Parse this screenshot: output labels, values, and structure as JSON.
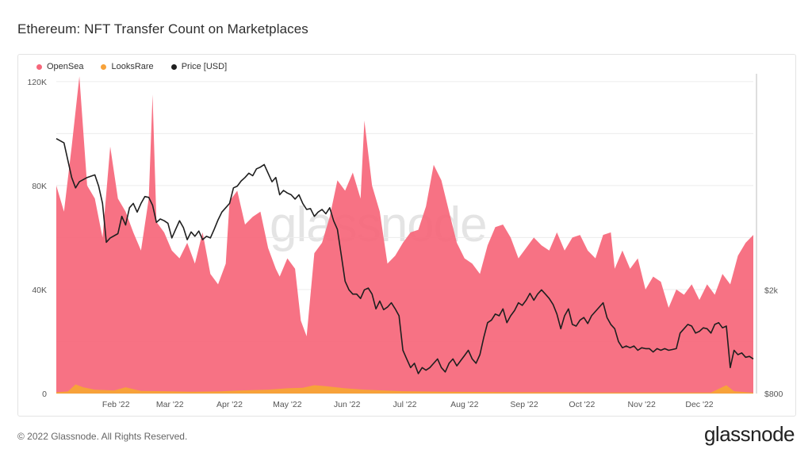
{
  "header": {
    "title": "Ethereum: NFT Transfer Count on Marketplaces"
  },
  "footer": {
    "copyright": "© 2022 Glassnode. All Rights Reserved.",
    "brand": "glassnode",
    "watermark": "glassnode"
  },
  "colors": {
    "opensea": "#f6667a",
    "looksrare": "#f7a23a",
    "price": "#1f1f1f",
    "grid": "#ececec"
  },
  "chart_data": {
    "type": "area",
    "title": "Ethereum: NFT Transfer Count on Marketplaces",
    "x": {
      "ticks": [
        "Feb '22",
        "Mar '22",
        "Apr '22",
        "May '22",
        "Jun '22",
        "Jul '22",
        "Aug '22",
        "Sep '22",
        "Oct '22",
        "Nov '22",
        "Dec '22"
      ],
      "range_days": [
        0,
        362
      ]
    },
    "y_left": {
      "ticks": [
        "0",
        "40K",
        "80K",
        "120K"
      ],
      "tick_values": [
        0,
        40000,
        80000,
        120000
      ],
      "range": [
        0,
        123000
      ]
    },
    "y_right": {
      "ticks": [
        "$800",
        "$2k"
      ],
      "tick_values": [
        800,
        2000
      ],
      "range": [
        800,
        4500
      ]
    },
    "grid": true,
    "legend_placement": "top-left",
    "series": [
      {
        "name": "OpenSea",
        "values": [
          [
            0,
            80000
          ],
          [
            4,
            70000
          ],
          [
            8,
            95000
          ],
          [
            12,
            122000
          ],
          [
            16,
            80000
          ],
          [
            20,
            75000
          ],
          [
            24,
            60000
          ],
          [
            28,
            95000
          ],
          [
            32,
            75000
          ],
          [
            36,
            70000
          ],
          [
            40,
            62000
          ],
          [
            44,
            55000
          ],
          [
            48,
            75000
          ],
          [
            50,
            115000
          ],
          [
            52,
            66000
          ],
          [
            56,
            62000
          ],
          [
            60,
            55000
          ],
          [
            64,
            52000
          ],
          [
            68,
            58000
          ],
          [
            72,
            50000
          ],
          [
            76,
            62000
          ],
          [
            80,
            46000
          ],
          [
            84,
            42000
          ],
          [
            88,
            50000
          ],
          [
            90,
            74000
          ],
          [
            94,
            78000
          ],
          [
            98,
            65000
          ],
          [
            102,
            68000
          ],
          [
            106,
            70000
          ],
          [
            110,
            56000
          ],
          [
            114,
            48000
          ],
          [
            116,
            45000
          ],
          [
            120,
            52000
          ],
          [
            124,
            48000
          ],
          [
            127,
            28000
          ],
          [
            130,
            22000
          ],
          [
            134,
            54000
          ],
          [
            138,
            58000
          ],
          [
            142,
            68000
          ],
          [
            146,
            82000
          ],
          [
            150,
            78000
          ],
          [
            154,
            85000
          ],
          [
            158,
            75000
          ],
          [
            160,
            105000
          ],
          [
            164,
            80000
          ],
          [
            168,
            70000
          ],
          [
            172,
            50000
          ],
          [
            176,
            53000
          ],
          [
            180,
            58000
          ],
          [
            184,
            62000
          ],
          [
            188,
            63000
          ],
          [
            192,
            72000
          ],
          [
            196,
            88000
          ],
          [
            200,
            82000
          ],
          [
            204,
            70000
          ],
          [
            208,
            58000
          ],
          [
            212,
            52000
          ],
          [
            216,
            50000
          ],
          [
            220,
            46000
          ],
          [
            224,
            57000
          ],
          [
            228,
            64000
          ],
          [
            232,
            65000
          ],
          [
            236,
            60000
          ],
          [
            240,
            52000
          ],
          [
            244,
            56000
          ],
          [
            248,
            60000
          ],
          [
            252,
            57000
          ],
          [
            256,
            55000
          ],
          [
            260,
            62000
          ],
          [
            264,
            55000
          ],
          [
            268,
            60000
          ],
          [
            272,
            61000
          ],
          [
            276,
            55000
          ],
          [
            280,
            52000
          ],
          [
            284,
            61000
          ],
          [
            288,
            62000
          ],
          [
            290,
            48000
          ],
          [
            294,
            55000
          ],
          [
            298,
            48000
          ],
          [
            302,
            52000
          ],
          [
            306,
            40000
          ],
          [
            310,
            45000
          ],
          [
            314,
            43000
          ],
          [
            318,
            33000
          ],
          [
            322,
            40000
          ],
          [
            326,
            38000
          ],
          [
            330,
            42000
          ],
          [
            334,
            36000
          ],
          [
            338,
            42000
          ],
          [
            342,
            38000
          ],
          [
            346,
            46000
          ],
          [
            350,
            42000
          ],
          [
            354,
            53000
          ],
          [
            358,
            58000
          ],
          [
            362,
            61000
          ]
        ]
      },
      {
        "name": "LooksRare",
        "values": [
          [
            0,
            500
          ],
          [
            6,
            800
          ],
          [
            10,
            3500
          ],
          [
            14,
            2400
          ],
          [
            20,
            1500
          ],
          [
            30,
            1200
          ],
          [
            36,
            2400
          ],
          [
            44,
            1000
          ],
          [
            56,
            900
          ],
          [
            70,
            700
          ],
          [
            84,
            800
          ],
          [
            96,
            1200
          ],
          [
            110,
            1500
          ],
          [
            120,
            2000
          ],
          [
            128,
            2200
          ],
          [
            134,
            3200
          ],
          [
            140,
            2800
          ],
          [
            150,
            2000
          ],
          [
            160,
            1500
          ],
          [
            170,
            1200
          ],
          [
            180,
            900
          ],
          [
            200,
            700
          ],
          [
            220,
            600
          ],
          [
            240,
            500
          ],
          [
            260,
            500
          ],
          [
            280,
            400
          ],
          [
            300,
            400
          ],
          [
            320,
            400
          ],
          [
            340,
            400
          ],
          [
            348,
            3200
          ],
          [
            352,
            900
          ],
          [
            362,
            300
          ]
        ]
      },
      {
        "name": "Price [USD]",
        "values": [
          [
            0,
            3750
          ],
          [
            4,
            3700
          ],
          [
            8,
            3300
          ],
          [
            10,
            3180
          ],
          [
            12,
            3250
          ],
          [
            16,
            3300
          ],
          [
            20,
            3330
          ],
          [
            22,
            3200
          ],
          [
            24,
            3000
          ],
          [
            26,
            2550
          ],
          [
            28,
            2600
          ],
          [
            32,
            2650
          ],
          [
            34,
            2850
          ],
          [
            36,
            2750
          ],
          [
            38,
            2950
          ],
          [
            40,
            3000
          ],
          [
            42,
            2900
          ],
          [
            44,
            3000
          ],
          [
            46,
            3080
          ],
          [
            48,
            3070
          ],
          [
            50,
            2980
          ],
          [
            52,
            2780
          ],
          [
            54,
            2820
          ],
          [
            56,
            2800
          ],
          [
            58,
            2770
          ],
          [
            60,
            2600
          ],
          [
            62,
            2700
          ],
          [
            64,
            2800
          ],
          [
            66,
            2720
          ],
          [
            68,
            2580
          ],
          [
            70,
            2670
          ],
          [
            72,
            2620
          ],
          [
            74,
            2680
          ],
          [
            76,
            2580
          ],
          [
            78,
            2620
          ],
          [
            80,
            2600
          ],
          [
            82,
            2700
          ],
          [
            84,
            2810
          ],
          [
            86,
            2900
          ],
          [
            88,
            2950
          ],
          [
            90,
            3000
          ],
          [
            92,
            3180
          ],
          [
            94,
            3200
          ],
          [
            96,
            3260
          ],
          [
            98,
            3300
          ],
          [
            100,
            3350
          ],
          [
            102,
            3320
          ],
          [
            104,
            3400
          ],
          [
            106,
            3420
          ],
          [
            108,
            3450
          ],
          [
            110,
            3350
          ],
          [
            112,
            3250
          ],
          [
            114,
            3300
          ],
          [
            116,
            3100
          ],
          [
            118,
            3150
          ],
          [
            120,
            3120
          ],
          [
            122,
            3100
          ],
          [
            124,
            3050
          ],
          [
            126,
            3100
          ],
          [
            128,
            3000
          ],
          [
            130,
            2930
          ],
          [
            132,
            2940
          ],
          [
            134,
            2850
          ],
          [
            136,
            2900
          ],
          [
            138,
            2930
          ],
          [
            140,
            2880
          ],
          [
            142,
            2950
          ],
          [
            144,
            2800
          ],
          [
            146,
            2700
          ],
          [
            148,
            2400
          ],
          [
            150,
            2100
          ],
          [
            152,
            2000
          ],
          [
            154,
            1950
          ],
          [
            156,
            1950
          ],
          [
            158,
            1900
          ],
          [
            160,
            2000
          ],
          [
            162,
            2020
          ],
          [
            164,
            1950
          ],
          [
            166,
            1780
          ],
          [
            168,
            1870
          ],
          [
            170,
            1770
          ],
          [
            172,
            1800
          ],
          [
            174,
            1850
          ],
          [
            176,
            1780
          ],
          [
            178,
            1700
          ],
          [
            180,
            1300
          ],
          [
            182,
            1200
          ],
          [
            184,
            1100
          ],
          [
            186,
            1150
          ],
          [
            188,
            1030
          ],
          [
            190,
            1100
          ],
          [
            192,
            1070
          ],
          [
            194,
            1100
          ],
          [
            196,
            1150
          ],
          [
            198,
            1200
          ],
          [
            200,
            1100
          ],
          [
            202,
            1050
          ],
          [
            204,
            1150
          ],
          [
            206,
            1200
          ],
          [
            208,
            1120
          ],
          [
            210,
            1180
          ],
          [
            212,
            1240
          ],
          [
            214,
            1300
          ],
          [
            216,
            1200
          ],
          [
            218,
            1150
          ],
          [
            220,
            1250
          ],
          [
            222,
            1450
          ],
          [
            224,
            1620
          ],
          [
            226,
            1650
          ],
          [
            228,
            1720
          ],
          [
            230,
            1700
          ],
          [
            232,
            1780
          ],
          [
            234,
            1620
          ],
          [
            236,
            1700
          ],
          [
            238,
            1760
          ],
          [
            240,
            1850
          ],
          [
            242,
            1820
          ],
          [
            244,
            1880
          ],
          [
            246,
            1960
          ],
          [
            248,
            1880
          ],
          [
            250,
            1950
          ],
          [
            252,
            2000
          ],
          [
            254,
            1950
          ],
          [
            256,
            1900
          ],
          [
            258,
            1830
          ],
          [
            260,
            1720
          ],
          [
            262,
            1550
          ],
          [
            264,
            1700
          ],
          [
            266,
            1780
          ],
          [
            268,
            1600
          ],
          [
            270,
            1580
          ],
          [
            272,
            1650
          ],
          [
            274,
            1680
          ],
          [
            276,
            1610
          ],
          [
            278,
            1700
          ],
          [
            280,
            1750
          ],
          [
            282,
            1800
          ],
          [
            284,
            1850
          ],
          [
            286,
            1680
          ],
          [
            288,
            1600
          ],
          [
            290,
            1550
          ],
          [
            292,
            1400
          ],
          [
            294,
            1330
          ],
          [
            296,
            1350
          ],
          [
            298,
            1330
          ],
          [
            300,
            1350
          ],
          [
            302,
            1300
          ],
          [
            304,
            1330
          ],
          [
            306,
            1320
          ],
          [
            308,
            1320
          ],
          [
            310,
            1280
          ],
          [
            312,
            1320
          ],
          [
            314,
            1300
          ],
          [
            316,
            1320
          ],
          [
            318,
            1300
          ],
          [
            320,
            1310
          ],
          [
            322,
            1320
          ],
          [
            324,
            1500
          ],
          [
            326,
            1550
          ],
          [
            328,
            1600
          ],
          [
            330,
            1580
          ],
          [
            332,
            1500
          ],
          [
            334,
            1520
          ],
          [
            336,
            1560
          ],
          [
            338,
            1550
          ],
          [
            340,
            1500
          ],
          [
            342,
            1600
          ],
          [
            344,
            1620
          ],
          [
            346,
            1560
          ],
          [
            348,
            1580
          ],
          [
            350,
            1100
          ],
          [
            352,
            1300
          ],
          [
            354,
            1250
          ],
          [
            356,
            1270
          ],
          [
            358,
            1220
          ],
          [
            360,
            1230
          ],
          [
            362,
            1200
          ]
        ]
      }
    ]
  }
}
